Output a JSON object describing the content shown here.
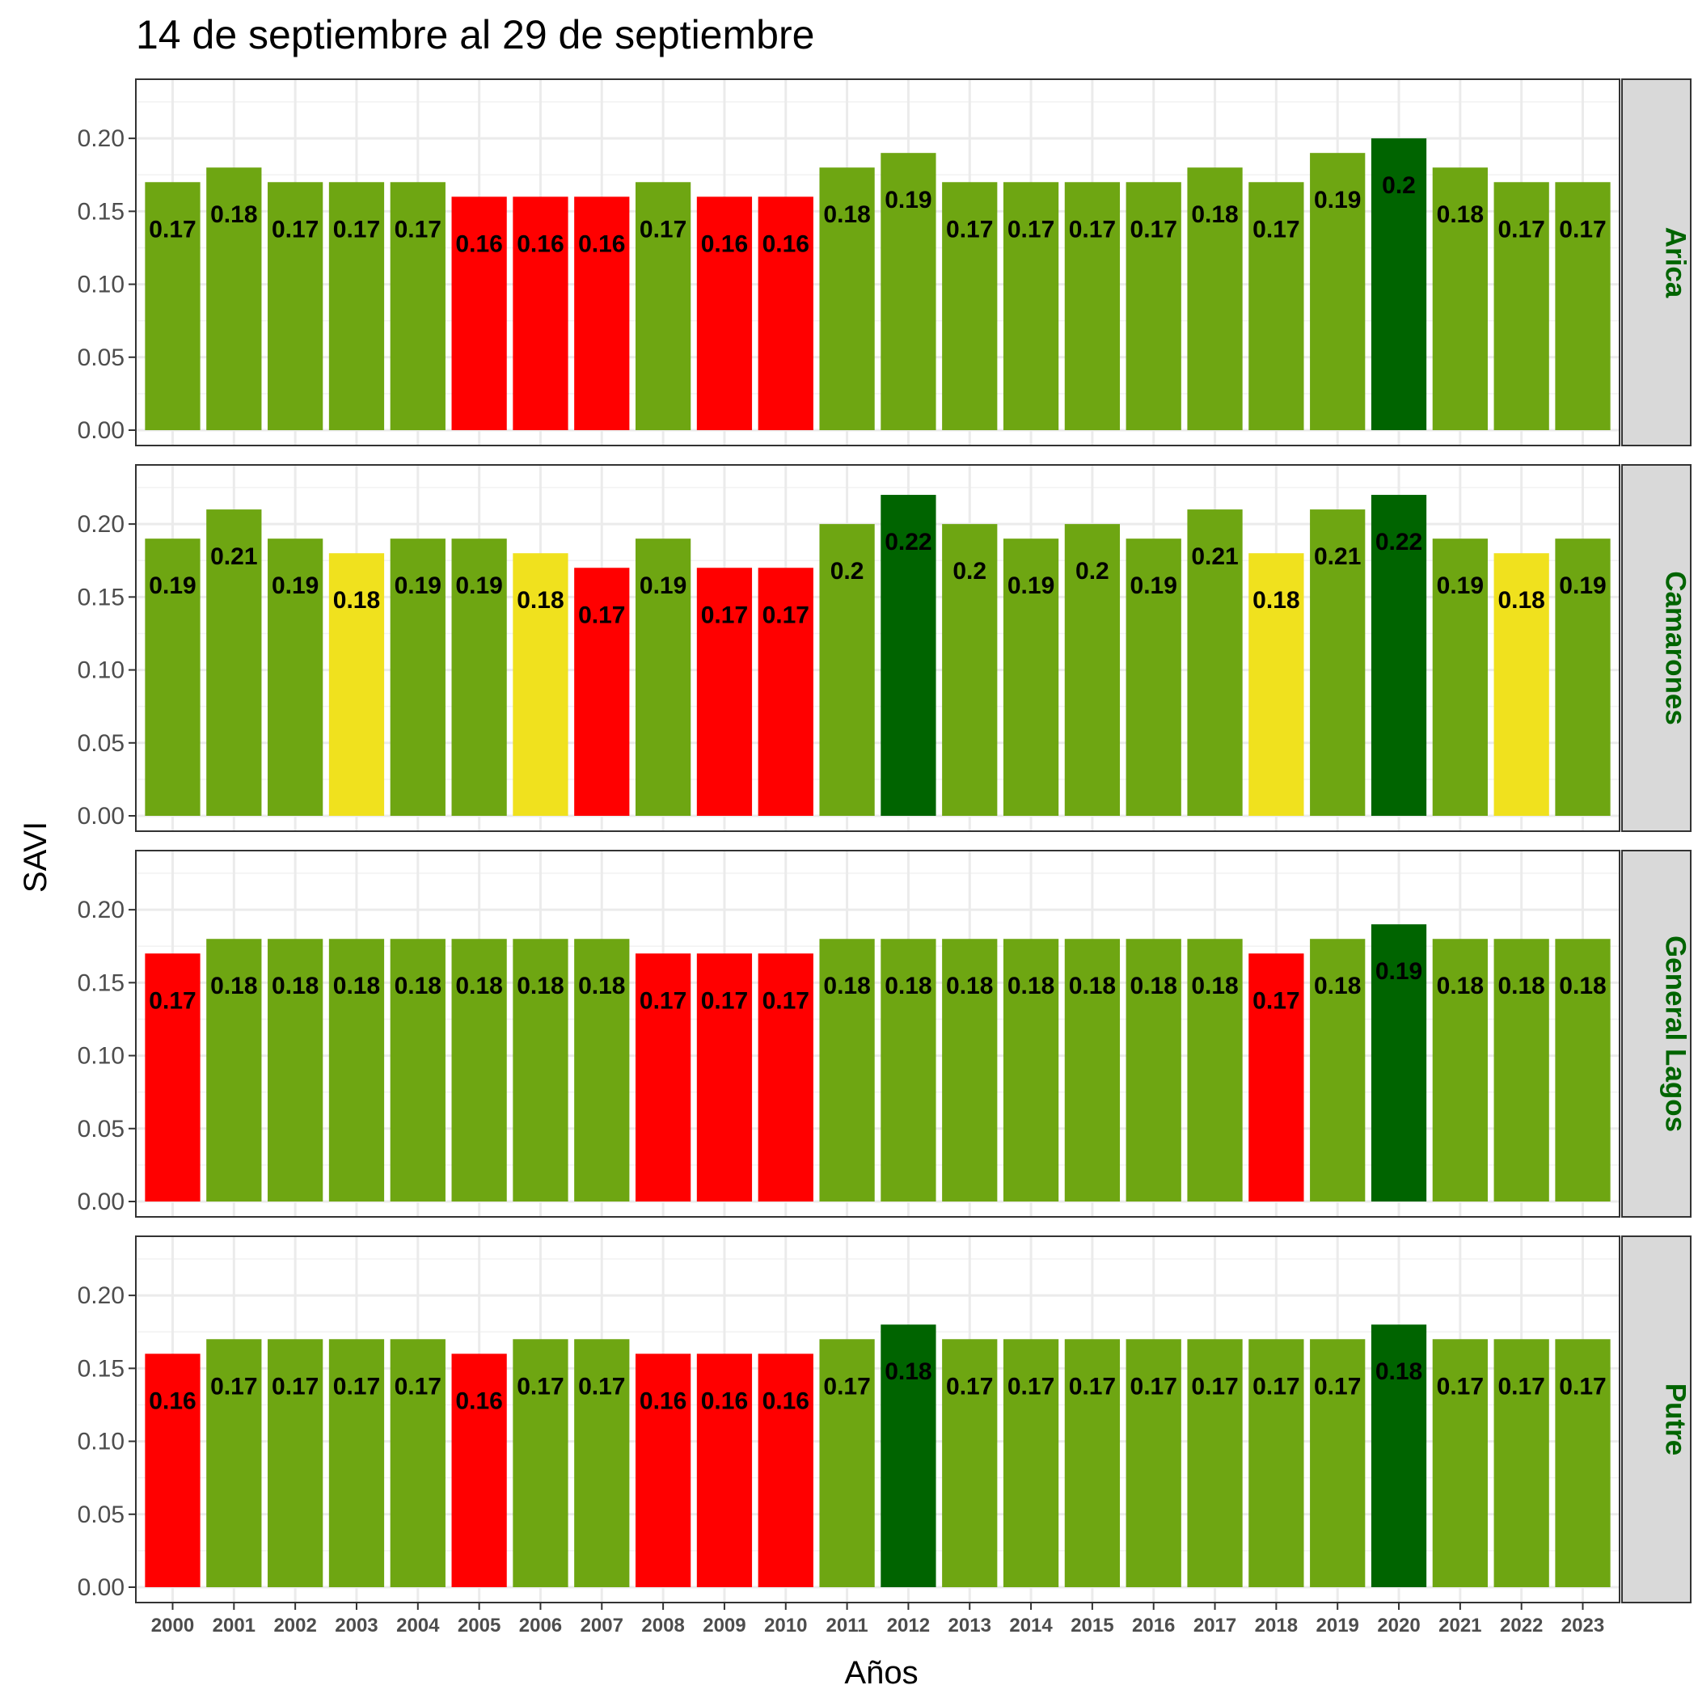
{
  "chart_data": {
    "type": "bar",
    "title": "14 de septiembre al 29 de septiembre",
    "xlabel": "Años",
    "ylabel": "SAVI",
    "ylim": [
      0,
      0.23
    ],
    "yticks": [
      "0.00",
      "0.05",
      "0.10",
      "0.15",
      "0.20"
    ],
    "grid": true,
    "legend": "none",
    "categories": [
      "2000",
      "2001",
      "2002",
      "2003",
      "2004",
      "2005",
      "2006",
      "2007",
      "2008",
      "2009",
      "2010",
      "2011",
      "2012",
      "2013",
      "2014",
      "2015",
      "2016",
      "2017",
      "2018",
      "2019",
      "2020",
      "2021",
      "2022",
      "2023"
    ],
    "colors": {
      "green": "#6ea612",
      "dark_green": "#006400",
      "red": "#ff0000",
      "yellow": "#f0e11e",
      "strip_text": "#006400",
      "strip_bg": "#d9d9d9"
    },
    "panels": [
      {
        "name": "Arica",
        "values": [
          0.17,
          0.18,
          0.17,
          0.17,
          0.17,
          0.16,
          0.16,
          0.16,
          0.17,
          0.16,
          0.16,
          0.18,
          0.19,
          0.17,
          0.17,
          0.17,
          0.17,
          0.18,
          0.17,
          0.19,
          0.2,
          0.18,
          0.17,
          0.17
        ],
        "labels": [
          "0.17",
          "0.18",
          "0.17",
          "0.17",
          "0.17",
          "0.16",
          "0.16",
          "0.16",
          "0.17",
          "0.16",
          "0.16",
          "0.18",
          "0.19",
          "0.17",
          "0.17",
          "0.17",
          "0.17",
          "0.18",
          "0.17",
          "0.19",
          "0.2",
          "0.18",
          "0.17",
          "0.17"
        ],
        "colors": [
          "green",
          "green",
          "green",
          "green",
          "green",
          "red",
          "red",
          "red",
          "green",
          "red",
          "red",
          "green",
          "green",
          "green",
          "green",
          "green",
          "green",
          "green",
          "green",
          "green",
          "dark_green",
          "green",
          "green",
          "green"
        ]
      },
      {
        "name": "Camarones",
        "values": [
          0.19,
          0.21,
          0.19,
          0.18,
          0.19,
          0.19,
          0.18,
          0.17,
          0.19,
          0.17,
          0.17,
          0.2,
          0.22,
          0.2,
          0.19,
          0.2,
          0.19,
          0.21,
          0.18,
          0.21,
          0.22,
          0.19,
          0.18,
          0.19
        ],
        "labels": [
          "0.19",
          "0.21",
          "0.19",
          "0.18",
          "0.19",
          "0.19",
          "0.18",
          "0.17",
          "0.19",
          "0.17",
          "0.17",
          "0.2",
          "0.22",
          "0.2",
          "0.19",
          "0.2",
          "0.19",
          "0.21",
          "0.18",
          "0.21",
          "0.22",
          "0.19",
          "0.18",
          "0.19"
        ],
        "colors": [
          "green",
          "green",
          "green",
          "yellow",
          "green",
          "green",
          "yellow",
          "red",
          "green",
          "red",
          "red",
          "green",
          "dark_green",
          "green",
          "green",
          "green",
          "green",
          "green",
          "yellow",
          "green",
          "dark_green",
          "green",
          "yellow",
          "green"
        ]
      },
      {
        "name": "General Lagos",
        "values": [
          0.17,
          0.18,
          0.18,
          0.18,
          0.18,
          0.18,
          0.18,
          0.18,
          0.17,
          0.17,
          0.17,
          0.18,
          0.18,
          0.18,
          0.18,
          0.18,
          0.18,
          0.18,
          0.17,
          0.18,
          0.19,
          0.18,
          0.18,
          0.18
        ],
        "labels": [
          "0.17",
          "0.18",
          "0.18",
          "0.18",
          "0.18",
          "0.18",
          "0.18",
          "0.18",
          "0.17",
          "0.17",
          "0.17",
          "0.18",
          "0.18",
          "0.18",
          "0.18",
          "0.18",
          "0.18",
          "0.18",
          "0.17",
          "0.18",
          "0.19",
          "0.18",
          "0.18",
          "0.18"
        ],
        "colors": [
          "red",
          "green",
          "green",
          "green",
          "green",
          "green",
          "green",
          "green",
          "red",
          "red",
          "red",
          "green",
          "green",
          "green",
          "green",
          "green",
          "green",
          "green",
          "red",
          "green",
          "dark_green",
          "green",
          "green",
          "green"
        ]
      },
      {
        "name": "Putre",
        "values": [
          0.16,
          0.17,
          0.17,
          0.17,
          0.17,
          0.16,
          0.17,
          0.17,
          0.16,
          0.16,
          0.16,
          0.17,
          0.18,
          0.17,
          0.17,
          0.17,
          0.17,
          0.17,
          0.17,
          0.17,
          0.18,
          0.17,
          0.17,
          0.17
        ],
        "labels": [
          "0.16",
          "0.17",
          "0.17",
          "0.17",
          "0.17",
          "0.16",
          "0.17",
          "0.17",
          "0.16",
          "0.16",
          "0.16",
          "0.17",
          "0.18",
          "0.17",
          "0.17",
          "0.17",
          "0.17",
          "0.17",
          "0.17",
          "0.17",
          "0.18",
          "0.17",
          "0.17",
          "0.17"
        ],
        "colors": [
          "red",
          "green",
          "green",
          "green",
          "green",
          "red",
          "green",
          "green",
          "red",
          "red",
          "red",
          "green",
          "dark_green",
          "green",
          "green",
          "green",
          "green",
          "green",
          "green",
          "green",
          "dark_green",
          "green",
          "green",
          "green"
        ]
      }
    ]
  }
}
